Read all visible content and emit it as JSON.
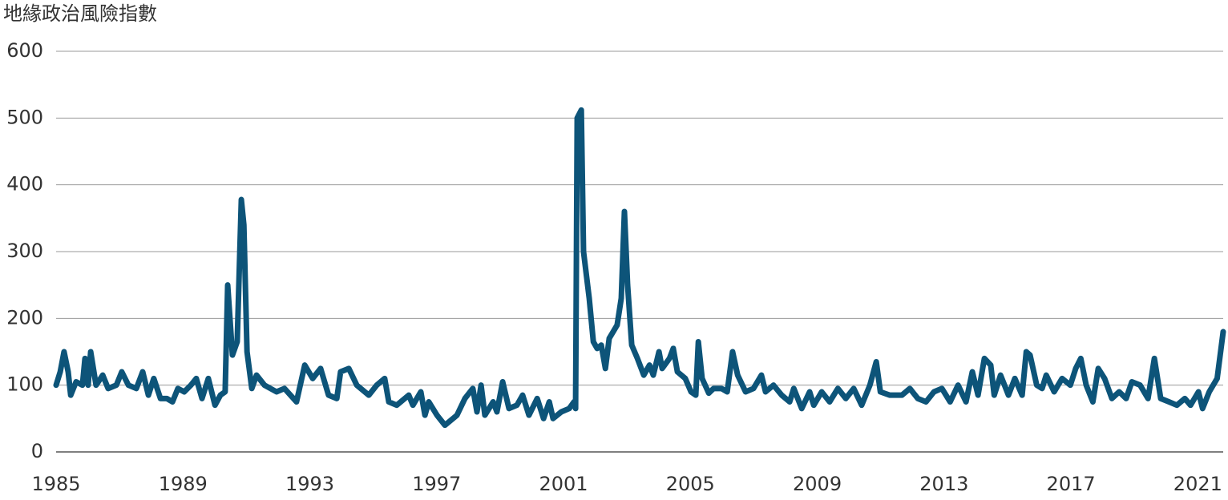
{
  "chart_data": {
    "type": "line",
    "title": "地緣政治風險指數",
    "x": [
      1985.0,
      1985.13,
      1985.25,
      1985.38,
      1985.46,
      1985.63,
      1985.83,
      1985.91,
      1986.01,
      1986.09,
      1986.26,
      1986.47,
      1986.64,
      1986.9,
      1987.07,
      1987.28,
      1987.53,
      1987.73,
      1987.91,
      1988.08,
      1988.29,
      1988.49,
      1988.67,
      1988.84,
      1989.04,
      1989.25,
      1989.42,
      1989.6,
      1989.8,
      1990.01,
      1990.18,
      1990.33,
      1990.41,
      1990.56,
      1990.71,
      1990.84,
      1990.92,
      1991.02,
      1991.17,
      1991.32,
      1991.57,
      1991.95,
      1992.2,
      1992.58,
      1992.84,
      1993.09,
      1993.34,
      1993.59,
      1993.85,
      1993.97,
      1994.23,
      1994.48,
      1994.86,
      1995.11,
      1995.36,
      1995.49,
      1995.74,
      1996.12,
      1996.25,
      1996.5,
      1996.63,
      1996.75,
      1997.01,
      1997.26,
      1997.64,
      1997.89,
      1998.14,
      1998.27,
      1998.4,
      1998.52,
      1998.78,
      1998.9,
      1999.08,
      1999.28,
      1999.53,
      1999.71,
      1999.91,
      2000.17,
      2000.37,
      2000.55,
      2000.67,
      2000.93,
      2001.18,
      2001.33,
      2001.38,
      2001.43,
      2001.56,
      2001.63,
      2001.81,
      2001.94,
      2002.06,
      2002.19,
      2002.32,
      2002.44,
      2002.69,
      2002.82,
      2002.92,
      2003.02,
      2003.15,
      2003.33,
      2003.53,
      2003.71,
      2003.83,
      2004.01,
      2004.11,
      2004.34,
      2004.46,
      2004.59,
      2004.84,
      2005.02,
      2005.17,
      2005.25,
      2005.37,
      2005.58,
      2005.73,
      2005.98,
      2006.16,
      2006.33,
      2006.49,
      2006.74,
      2006.99,
      2007.24,
      2007.37,
      2007.62,
      2007.88,
      2008.13,
      2008.26,
      2008.51,
      2008.76,
      2008.89,
      2009.14,
      2009.39,
      2009.65,
      2009.9,
      2010.15,
      2010.4,
      2010.66,
      2010.86,
      2010.99,
      2011.29,
      2011.67,
      2011.92,
      2012.17,
      2012.43,
      2012.68,
      2012.93,
      2013.19,
      2013.44,
      2013.69,
      2013.89,
      2014.07,
      2014.27,
      2014.47,
      2014.58,
      2014.78,
      2015.03,
      2015.23,
      2015.46,
      2015.59,
      2015.71,
      2015.92,
      2016.09,
      2016.22,
      2016.47,
      2016.72,
      2016.98,
      2017.15,
      2017.31,
      2017.48,
      2017.69,
      2017.86,
      2018.06,
      2018.29,
      2018.52,
      2018.74,
      2018.92,
      2019.18,
      2019.43,
      2019.63,
      2019.83,
      2020.09,
      2020.34,
      2020.59,
      2020.77,
      2021.02,
      2021.15,
      2021.36,
      2021.61,
      2021.8
    ],
    "values": [
      100,
      120,
      150,
      120,
      85,
      105,
      100,
      140,
      100,
      150,
      100,
      115,
      95,
      100,
      120,
      100,
      95,
      120,
      85,
      110,
      80,
      80,
      75,
      95,
      90,
      100,
      110,
      80,
      110,
      70,
      85,
      90,
      250,
      145,
      165,
      378,
      340,
      150,
      95,
      115,
      100,
      90,
      95,
      75,
      130,
      110,
      125,
      85,
      80,
      120,
      125,
      100,
      85,
      100,
      110,
      75,
      70,
      85,
      70,
      90,
      55,
      75,
      55,
      40,
      55,
      80,
      95,
      60,
      100,
      55,
      75,
      60,
      105,
      65,
      70,
      85,
      55,
      80,
      50,
      75,
      50,
      60,
      65,
      75,
      65,
      500,
      512,
      300,
      230,
      165,
      155,
      160,
      125,
      170,
      190,
      230,
      360,
      250,
      160,
      140,
      115,
      130,
      115,
      150,
      125,
      140,
      155,
      120,
      110,
      90,
      85,
      165,
      110,
      88,
      95,
      95,
      90,
      150,
      115,
      90,
      95,
      115,
      90,
      100,
      85,
      75,
      95,
      65,
      90,
      70,
      90,
      75,
      95,
      80,
      95,
      70,
      100,
      135,
      90,
      85,
      85,
      95,
      80,
      75,
      90,
      95,
      75,
      100,
      75,
      120,
      85,
      140,
      130,
      85,
      115,
      85,
      110,
      85,
      150,
      145,
      100,
      95,
      115,
      90,
      110,
      100,
      125,
      140,
      100,
      75,
      125,
      110,
      80,
      90,
      80,
      105,
      100,
      80,
      140,
      80,
      75,
      70,
      80,
      70,
      90,
      65,
      90,
      110,
      180
    ],
    "color": "#0d5479",
    "xlim": [
      1985,
      2021.8
    ],
    "xticks": [
      1985,
      1989,
      1993,
      1997,
      2001,
      2005,
      2009,
      2013,
      2017,
      2021
    ],
    "ylim": [
      0,
      600
    ],
    "yticks": [
      0,
      100,
      200,
      300,
      400,
      500,
      600
    ],
    "grid": true
  }
}
